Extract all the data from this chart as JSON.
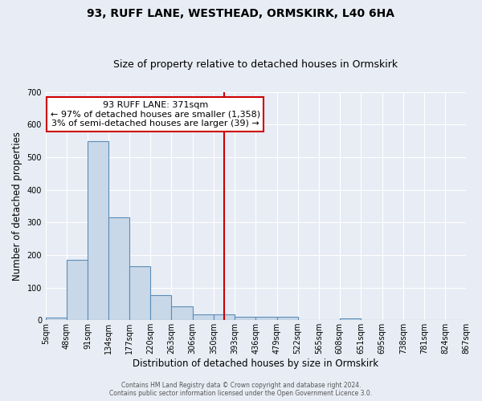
{
  "title": "93, RUFF LANE, WESTHEAD, ORMSKIRK, L40 6HA",
  "subtitle": "Size of property relative to detached houses in Ormskirk",
  "xlabel": "Distribution of detached houses by size in Ormskirk",
  "ylabel": "Number of detached properties",
  "bar_color": "#c8d8e8",
  "bar_edge_color": "#5b8db8",
  "background_color": "#e8edf5",
  "grid_color": "#ffffff",
  "bin_labels": [
    "5sqm",
    "48sqm",
    "91sqm",
    "134sqm",
    "177sqm",
    "220sqm",
    "263sqm",
    "306sqm",
    "350sqm",
    "393sqm",
    "436sqm",
    "479sqm",
    "522sqm",
    "565sqm",
    "608sqm",
    "651sqm",
    "695sqm",
    "738sqm",
    "781sqm",
    "824sqm",
    "867sqm"
  ],
  "bar_heights": [
    8,
    185,
    550,
    315,
    165,
    77,
    42,
    17,
    18,
    10,
    10,
    10,
    0,
    0,
    5,
    0,
    0,
    0,
    0,
    0
  ],
  "bin_width": 43,
  "bin_starts": [
    5,
    48,
    91,
    134,
    177,
    220,
    263,
    306,
    350,
    393,
    436,
    479,
    522,
    565,
    608,
    651,
    695,
    738,
    781,
    824
  ],
  "ylim": [
    0,
    700
  ],
  "yticks": [
    0,
    100,
    200,
    300,
    400,
    500,
    600,
    700
  ],
  "vline_x": 371,
  "vline_color": "#cc0000",
  "annotation_text": "93 RUFF LANE: 371sqm\n← 97% of detached houses are smaller (1,358)\n3% of semi-detached houses are larger (39) →",
  "annotation_box_color": "#ffffff",
  "annotation_box_edge": "#cc0000",
  "footer_text": "Contains HM Land Registry data © Crown copyright and database right 2024.\nContains public sector information licensed under the Open Government Licence 3.0.",
  "title_fontsize": 10,
  "subtitle_fontsize": 9,
  "tick_fontsize": 7,
  "ylabel_fontsize": 8.5,
  "xlabel_fontsize": 8.5,
  "annotation_fontsize": 8
}
